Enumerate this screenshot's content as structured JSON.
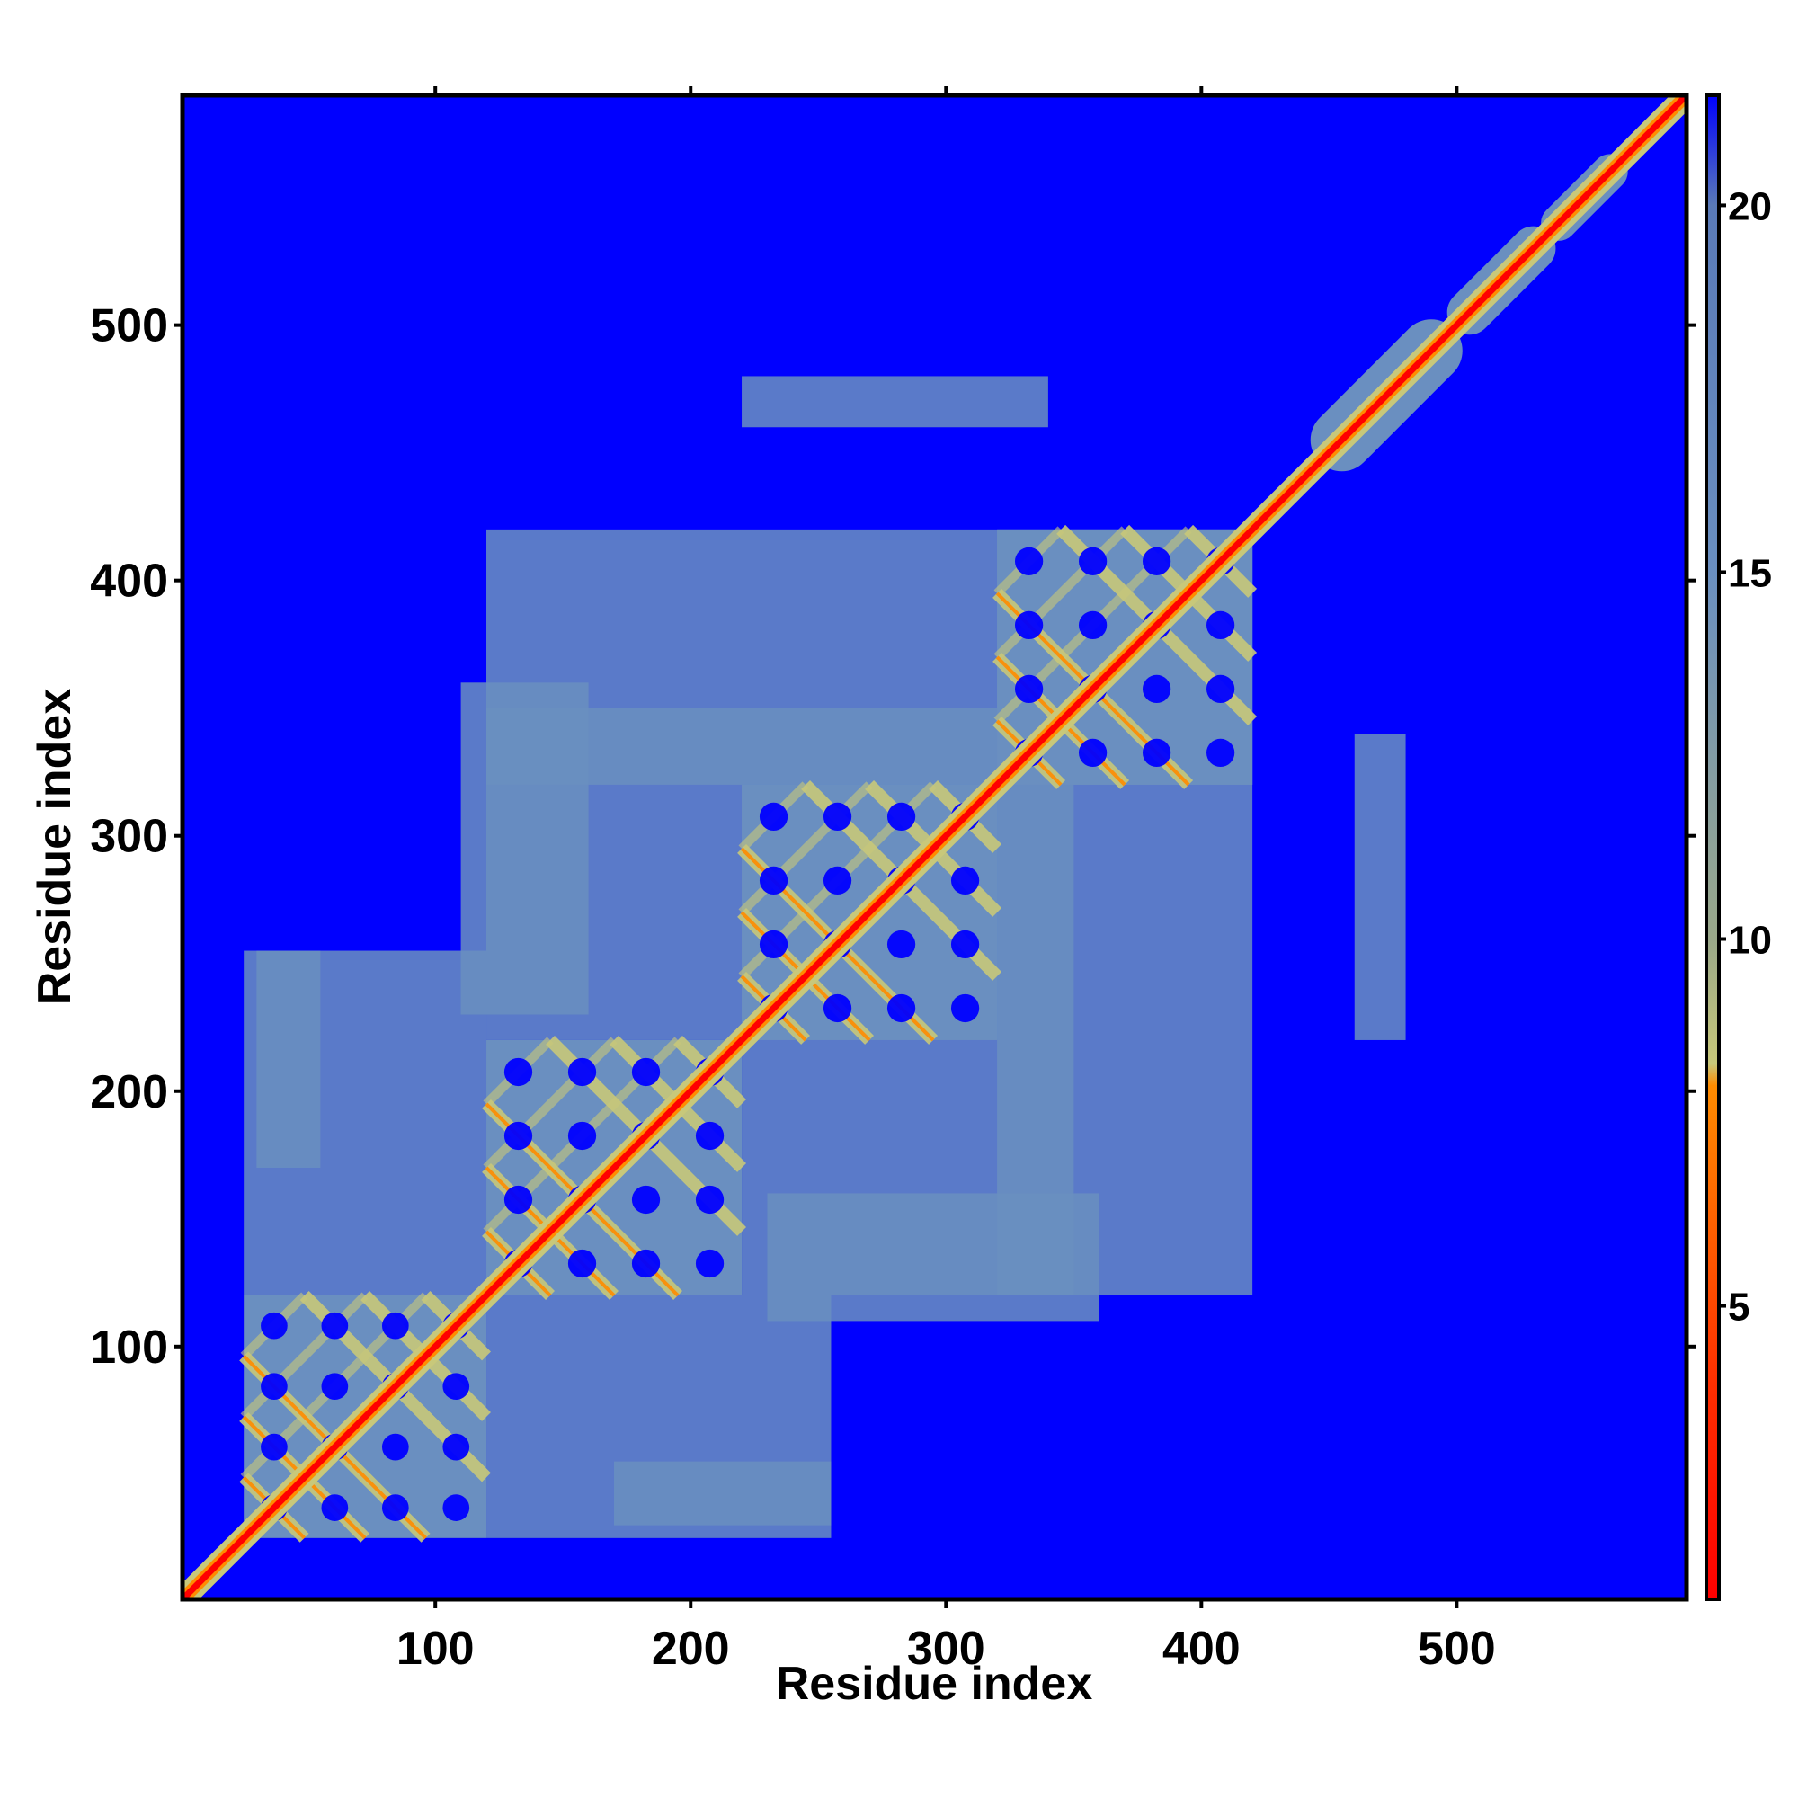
{
  "chart_data": {
    "type": "heatmap",
    "title": "",
    "xlabel": "Residue index",
    "ylabel": "Residue index",
    "xlim": [
      1,
      590
    ],
    "ylim": [
      1,
      590
    ],
    "xticks": [
      100,
      200,
      300,
      400,
      500
    ],
    "yticks": [
      100,
      200,
      300,
      400,
      500
    ],
    "colorbar": {
      "range": [
        1,
        21.5
      ],
      "ticks": [
        5,
        10,
        15,
        20
      ],
      "colors": {
        "close": "#ff0000",
        "near": "#ff8c00",
        "mid": "#c8c87a",
        "far": "#6a8fc0",
        "background": "#0000ff"
      }
    },
    "domains": [
      {
        "start": 25,
        "end": 120
      },
      {
        "start": 120,
        "end": 220
      },
      {
        "start": 220,
        "end": 320
      },
      {
        "start": 320,
        "end": 420
      }
    ],
    "secondary_blocks": [
      {
        "start": 455,
        "end": 490
      },
      {
        "start": 505,
        "end": 530
      },
      {
        "start": 540,
        "end": 560
      }
    ],
    "off_diagonal_patches": [
      {
        "x": [
          25,
          120
        ],
        "y": [
          120,
          255
        ]
      },
      {
        "x": [
          120,
          320
        ],
        "y": [
          220,
          350
        ]
      },
      {
        "x": [
          120,
          420
        ],
        "y": [
          320,
          420
        ]
      },
      {
        "x": [
          230,
          360
        ],
        "y": [
          110,
          160
        ]
      },
      {
        "x": [
          170,
          255
        ],
        "y": [
          30,
          55
        ]
      },
      {
        "x": [
          220,
          340
        ],
        "y": [
          460,
          480
        ]
      }
    ]
  }
}
